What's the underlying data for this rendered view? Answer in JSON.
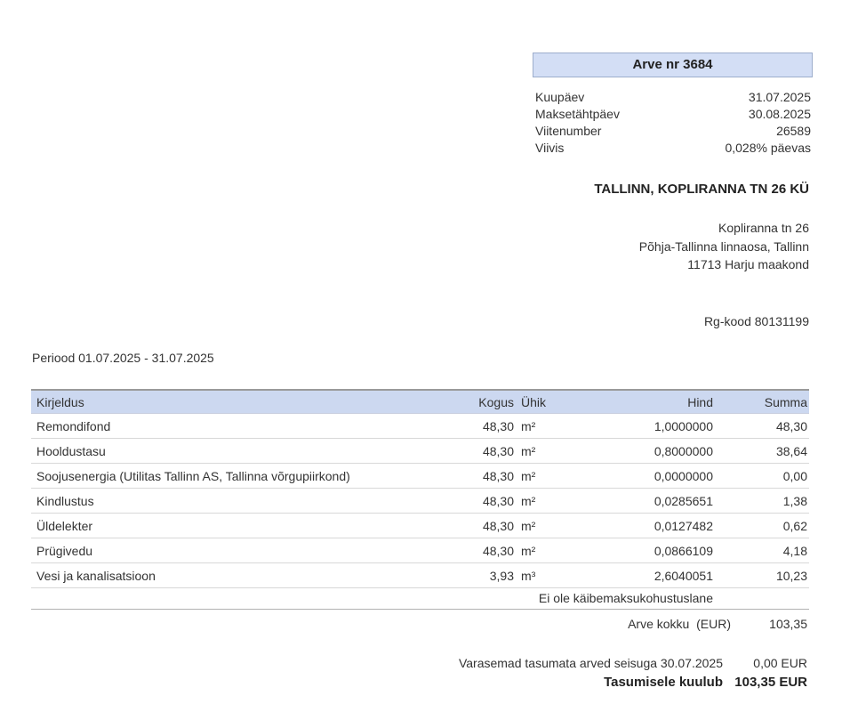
{
  "invoice": {
    "title": "Arve nr 3684",
    "meta": {
      "rows": [
        {
          "label": "Kuupäev",
          "value": "31.07.2025"
        },
        {
          "label": "Maksetähtpäev",
          "value": "30.08.2025"
        },
        {
          "label": "Viitenumber",
          "value": "26589"
        },
        {
          "label": "Viivis",
          "value": "0,028% päevas"
        }
      ]
    },
    "recipient": {
      "name": "TALLINN, KOPLIRANNA TN 26 KÜ",
      "address_lines": [
        "Kopliranna tn 26",
        "Põhja-Tallinna linnaosa, Tallinn",
        "11713 Harju maakond"
      ],
      "reg_code": "Rg-kood 80131199"
    },
    "period": "Periood 01.07.2025 - 31.07.2025",
    "table": {
      "headers": {
        "desc": "Kirjeldus",
        "kogus": "Kogus",
        "uhik": "Ühik",
        "hind": "Hind",
        "summa": "Summa"
      },
      "rows": [
        {
          "desc": "Remondifond",
          "kogus": "48,30",
          "uhik": "m²",
          "hind": "1,0000000",
          "summa": "48,30"
        },
        {
          "desc": "Hooldustasu",
          "kogus": "48,30",
          "uhik": "m²",
          "hind": "0,8000000",
          "summa": "38,64"
        },
        {
          "desc": "Soojusenergia (Utilitas Tallinn AS, Tallinna võrgupiirkond)",
          "kogus": "48,30",
          "uhik": "m²",
          "hind": "0,0000000",
          "summa": "0,00"
        },
        {
          "desc": "Kindlustus",
          "kogus": "48,30",
          "uhik": "m²",
          "hind": "0,0285651",
          "summa": "1,38"
        },
        {
          "desc": "Üldelekter",
          "kogus": "48,30",
          "uhik": "m²",
          "hind": "0,0127482",
          "summa": "0,62"
        },
        {
          "desc": "Prügivedu",
          "kogus": "48,30",
          "uhik": "m²",
          "hind": "0,0866109",
          "summa": "4,18"
        },
        {
          "desc": "Vesi ja kanalisatsioon",
          "kogus": "3,93",
          "uhik": "m³",
          "hind": "2,6040051",
          "summa": "10,23"
        }
      ]
    },
    "summary": {
      "tax_note": "Ei ole käibemaksukohustuslane",
      "total_label": "Arve kokku  (EUR)",
      "total_value": "103,35",
      "previous_label": "Varasemad tasumata arved seisuga 30.07.2025",
      "previous_value": "0,00 EUR",
      "due_label": "Tasumisele kuulub",
      "due_value": "103,35 EUR"
    },
    "colors": {
      "title_box_bg": "#d3def5",
      "title_box_border": "#9dadcc",
      "table_header_bg": "#ccd8f0",
      "text": "#333333"
    }
  }
}
